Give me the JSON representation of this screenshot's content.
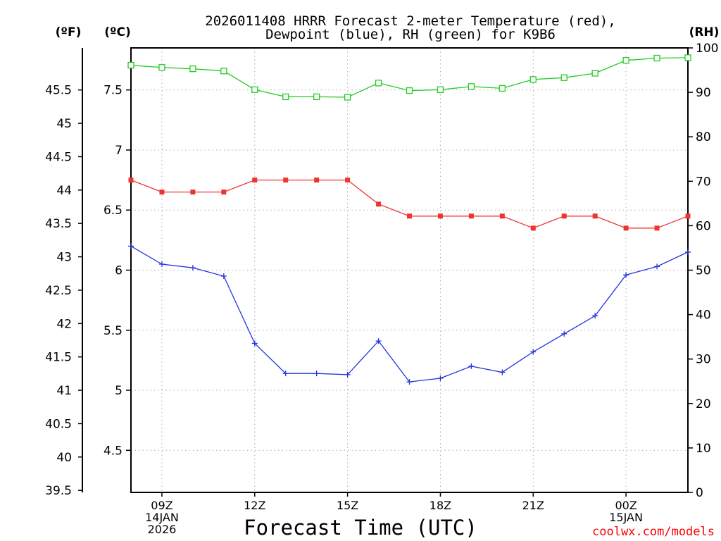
{
  "chart_data": {
    "type": "line",
    "title": [
      "2026011408 HRRR Forecast 2-meter Temperature (red),",
      "Dewpoint (blue), RH (green) for K9B6"
    ],
    "xlabel": "Forecast Time (UTC)",
    "credit": "coolwx.com/models",
    "units": {
      "fahrenheit": "(ºF)",
      "celsius": "(ºC)",
      "rh": "(RH)"
    },
    "x": [
      8,
      9,
      10,
      11,
      12,
      13,
      14,
      15,
      16,
      17,
      18,
      19,
      20,
      21,
      22,
      23,
      24,
      25,
      26
    ],
    "xlim": [
      8,
      26
    ],
    "x_ticks": [
      {
        "x": 9,
        "lines": [
          "09Z",
          "14JAN",
          "2026"
        ]
      },
      {
        "x": 12,
        "lines": [
          "12Z"
        ]
      },
      {
        "x": 15,
        "lines": [
          "15Z"
        ]
      },
      {
        "x": 18,
        "lines": [
          "18Z"
        ]
      },
      {
        "x": 21,
        "lines": [
          "21Z"
        ]
      },
      {
        "x": 24,
        "lines": [
          "00Z",
          "15JAN"
        ]
      }
    ],
    "y_left_celsius": {
      "ylim": [
        4.15,
        7.85
      ],
      "ticks": [
        "4.5",
        "5",
        "5.5",
        "6",
        "6.5",
        "7",
        "7.5"
      ]
    },
    "y_left_fahrenheit": {
      "ticks": [
        "39.5",
        "40",
        "40.5",
        "41",
        "41.5",
        "42",
        "42.5",
        "43",
        "43.5",
        "44",
        "44.5",
        "45",
        "45.5"
      ]
    },
    "y_right_rh": {
      "ylim": [
        0,
        100
      ],
      "ticks": [
        "0",
        "10",
        "20",
        "30",
        "40",
        "50",
        "60",
        "70",
        "80",
        "90",
        "100"
      ]
    },
    "grid": true,
    "series": [
      {
        "name": "2-meter Temperature",
        "axis": "celsius",
        "color": "#ee3333",
        "marker": "filled-square",
        "values": [
          6.75,
          6.65,
          6.65,
          6.65,
          6.75,
          6.75,
          6.75,
          6.75,
          6.55,
          6.45,
          6.45,
          6.45,
          6.45,
          6.35,
          6.45,
          6.45,
          6.35,
          6.35,
          6.45
        ]
      },
      {
        "name": "Dewpoint",
        "axis": "celsius",
        "color": "#2233dd",
        "marker": "plus",
        "values": [
          6.2,
          6.05,
          6.02,
          5.95,
          5.39,
          5.14,
          5.14,
          5.13,
          5.41,
          5.07,
          5.1,
          5.2,
          5.15,
          5.32,
          5.47,
          5.62,
          5.96,
          6.03,
          6.15
        ]
      },
      {
        "name": "RH",
        "axis": "rh",
        "color": "#22cc22",
        "marker": "open-square",
        "values": [
          96.1,
          95.6,
          95.3,
          94.8,
          90.6,
          89.0,
          89.0,
          88.9,
          92.1,
          90.4,
          90.6,
          91.3,
          90.9,
          92.9,
          93.3,
          94.3,
          97.2,
          97.7,
          97.8
        ]
      }
    ]
  }
}
